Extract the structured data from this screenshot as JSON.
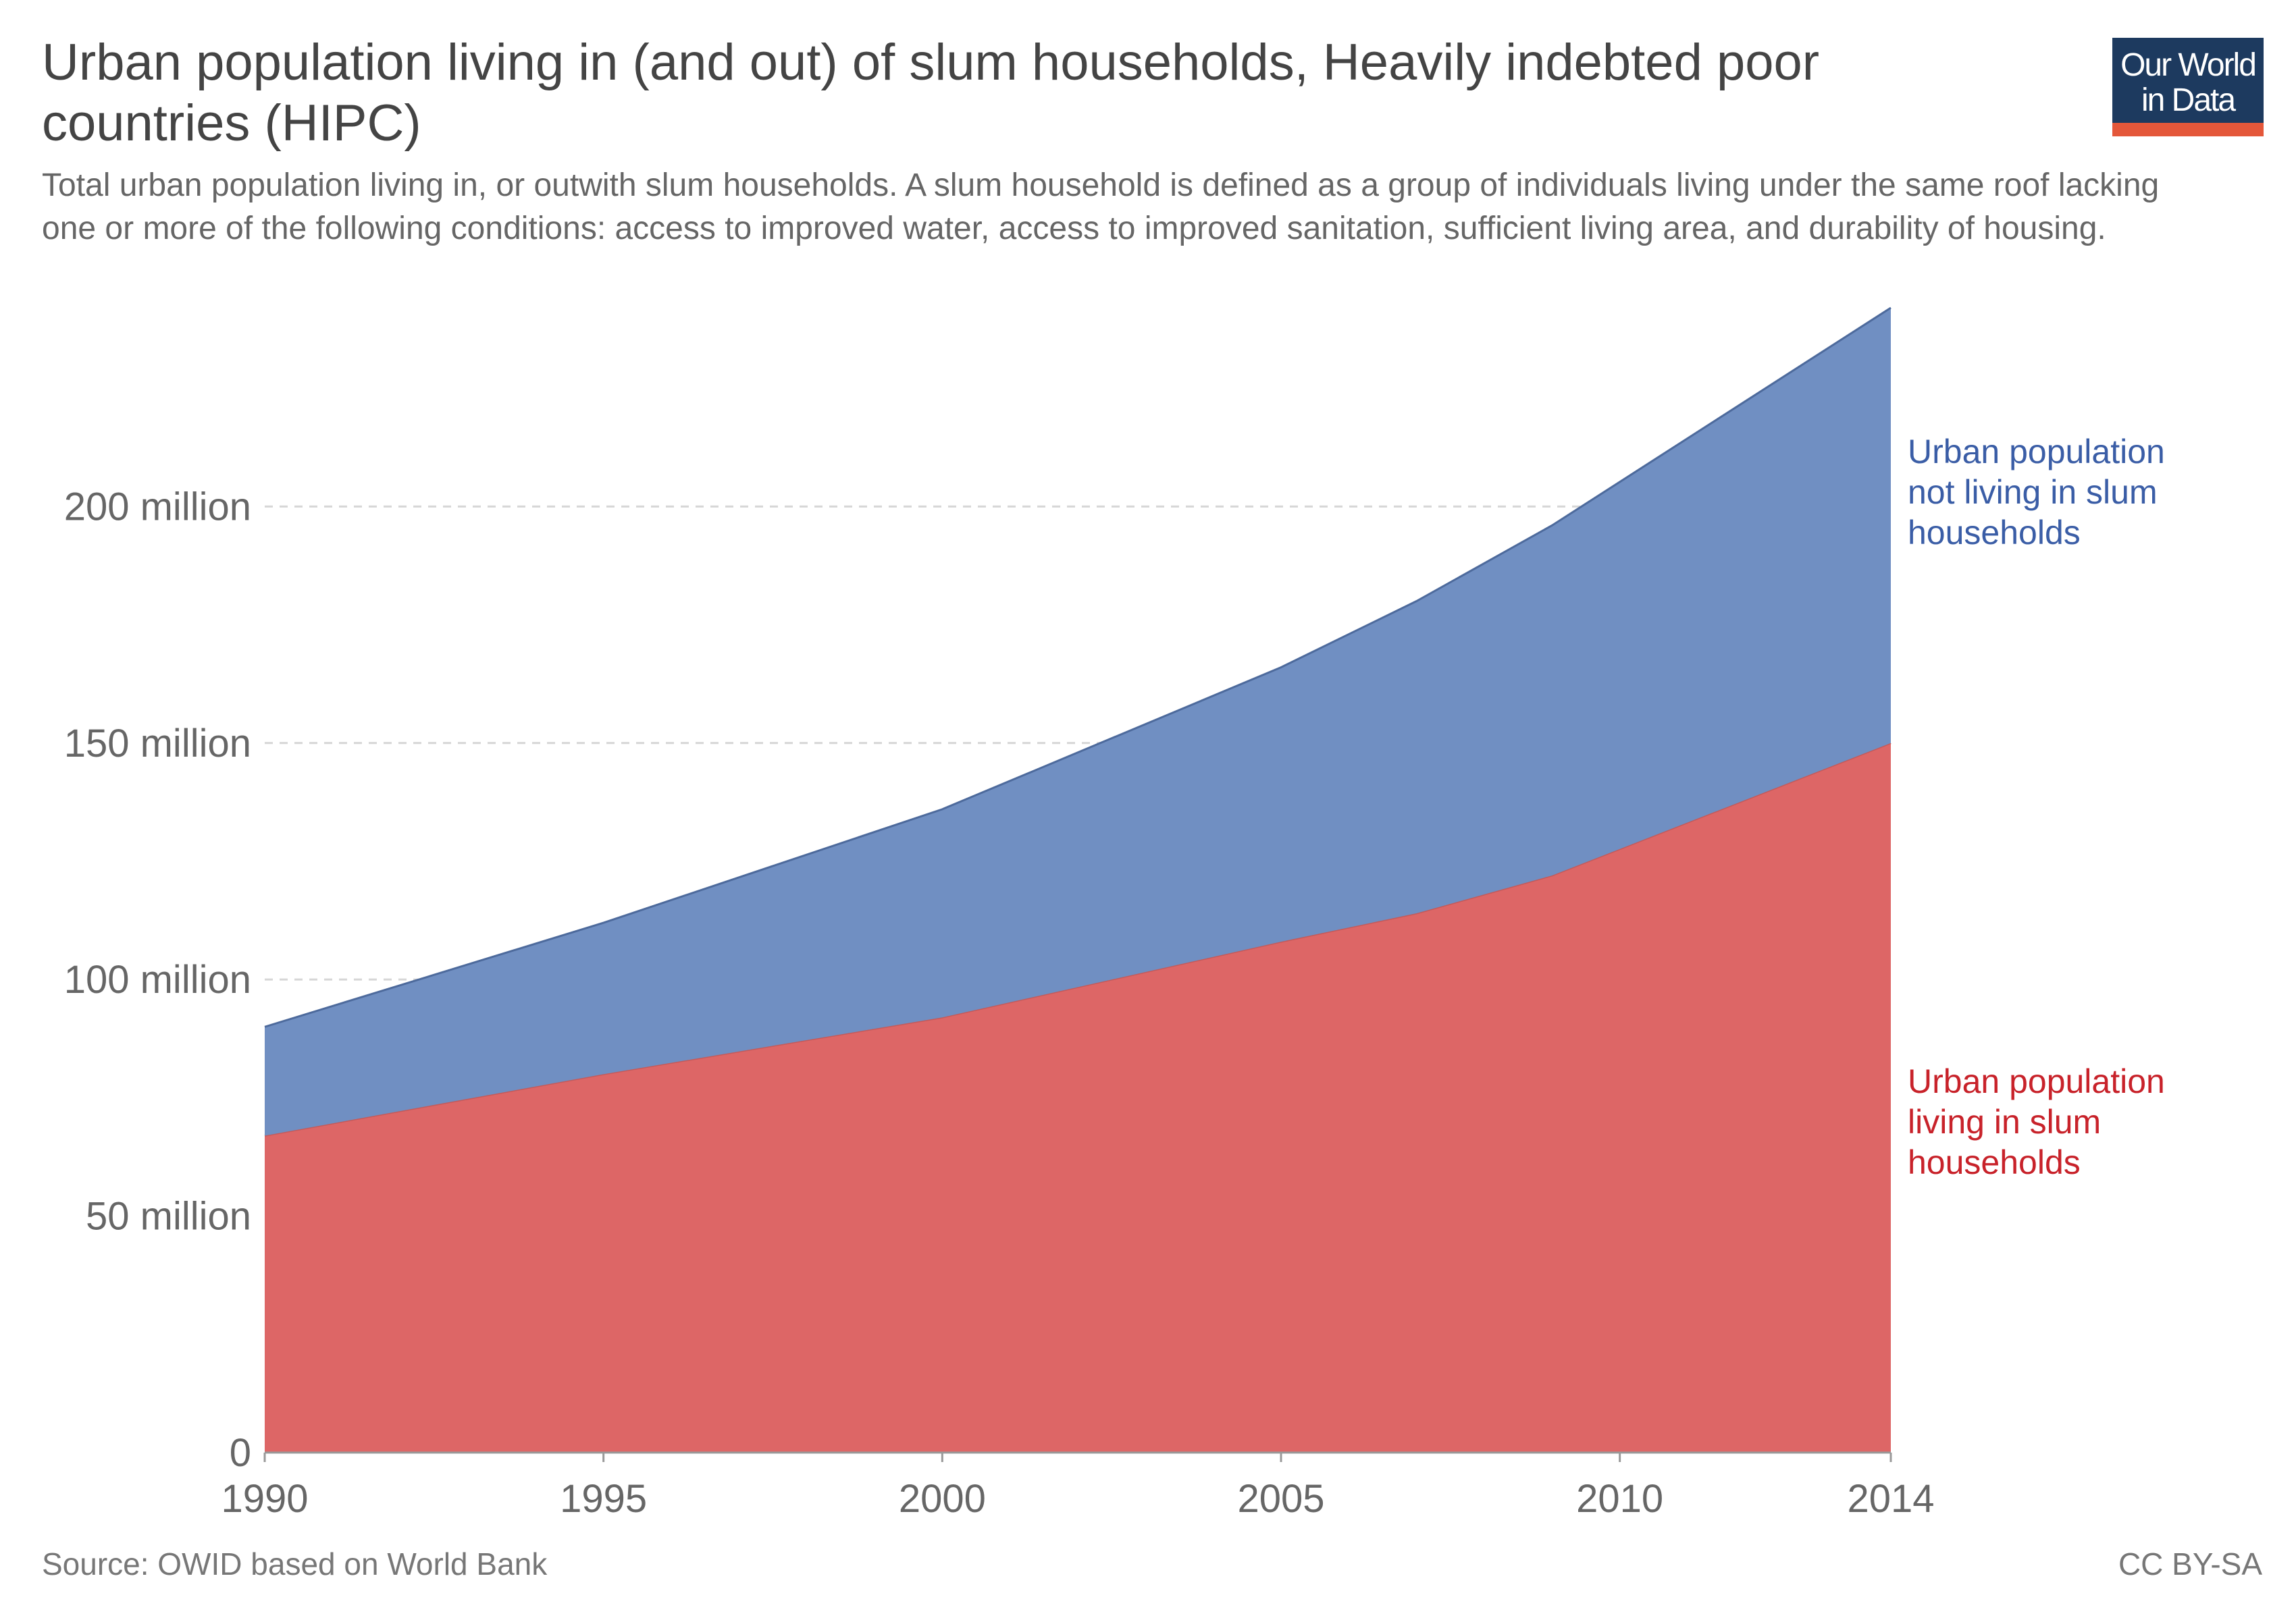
{
  "header": {
    "title": "Urban population living in (and out) of slum households, Heavily indebted poor countries (HIPC)",
    "subtitle": "Total urban population living in, or outwith slum households. A slum household is defined as a group of individuals living under the same roof lacking one or more of the following conditions: access to improved water, access to improved sanitation, sufficient living area, and durability of housing."
  },
  "logo": {
    "line1": "Our World",
    "line2": "in Data",
    "bg_color": "#1d3a5f",
    "accent_color": "#e4573a"
  },
  "footer": {
    "source": "Source: OWID based on World Bank",
    "license": "CC BY-SA"
  },
  "chart_data": {
    "type": "area",
    "stacked": true,
    "x": [
      1990,
      1995,
      2000,
      2005,
      2007,
      2009,
      2014
    ],
    "xlim": [
      1990,
      2014
    ],
    "ylim": [
      0,
      240000000
    ],
    "x_ticks": [
      {
        "value": 1990,
        "label": "1990"
      },
      {
        "value": 1995,
        "label": "1995"
      },
      {
        "value": 2000,
        "label": "2000"
      },
      {
        "value": 2005,
        "label": "2005"
      },
      {
        "value": 2010,
        "label": "2010"
      },
      {
        "value": 2014,
        "label": "2014"
      }
    ],
    "y_ticks": [
      {
        "value": 0,
        "label": "0"
      },
      {
        "value": 50000000,
        "label": "50 million"
      },
      {
        "value": 100000000,
        "label": "100 million"
      },
      {
        "value": 150000000,
        "label": "150 million"
      },
      {
        "value": 200000000,
        "label": "200 million"
      }
    ],
    "grid": "horizontal-dashed",
    "series": [
      {
        "name": "Urban population living in slum households",
        "label_lines": [
          "Urban population",
          "living in slum",
          "households"
        ],
        "color": "#dd6666",
        "label_color": "#c8222a",
        "values": [
          67000000,
          80000000,
          92000000,
          108000000,
          114000000,
          122000000,
          150000000
        ]
      },
      {
        "name": "Urban population not living in slum households",
        "label_lines": [
          "Urban population",
          "not living in slum",
          "households"
        ],
        "color": "#708fc2",
        "label_color": "#3a5da6",
        "values": [
          23000000,
          32000000,
          44000000,
          58000000,
          66000000,
          74000000,
          92000000
        ]
      }
    ]
  }
}
